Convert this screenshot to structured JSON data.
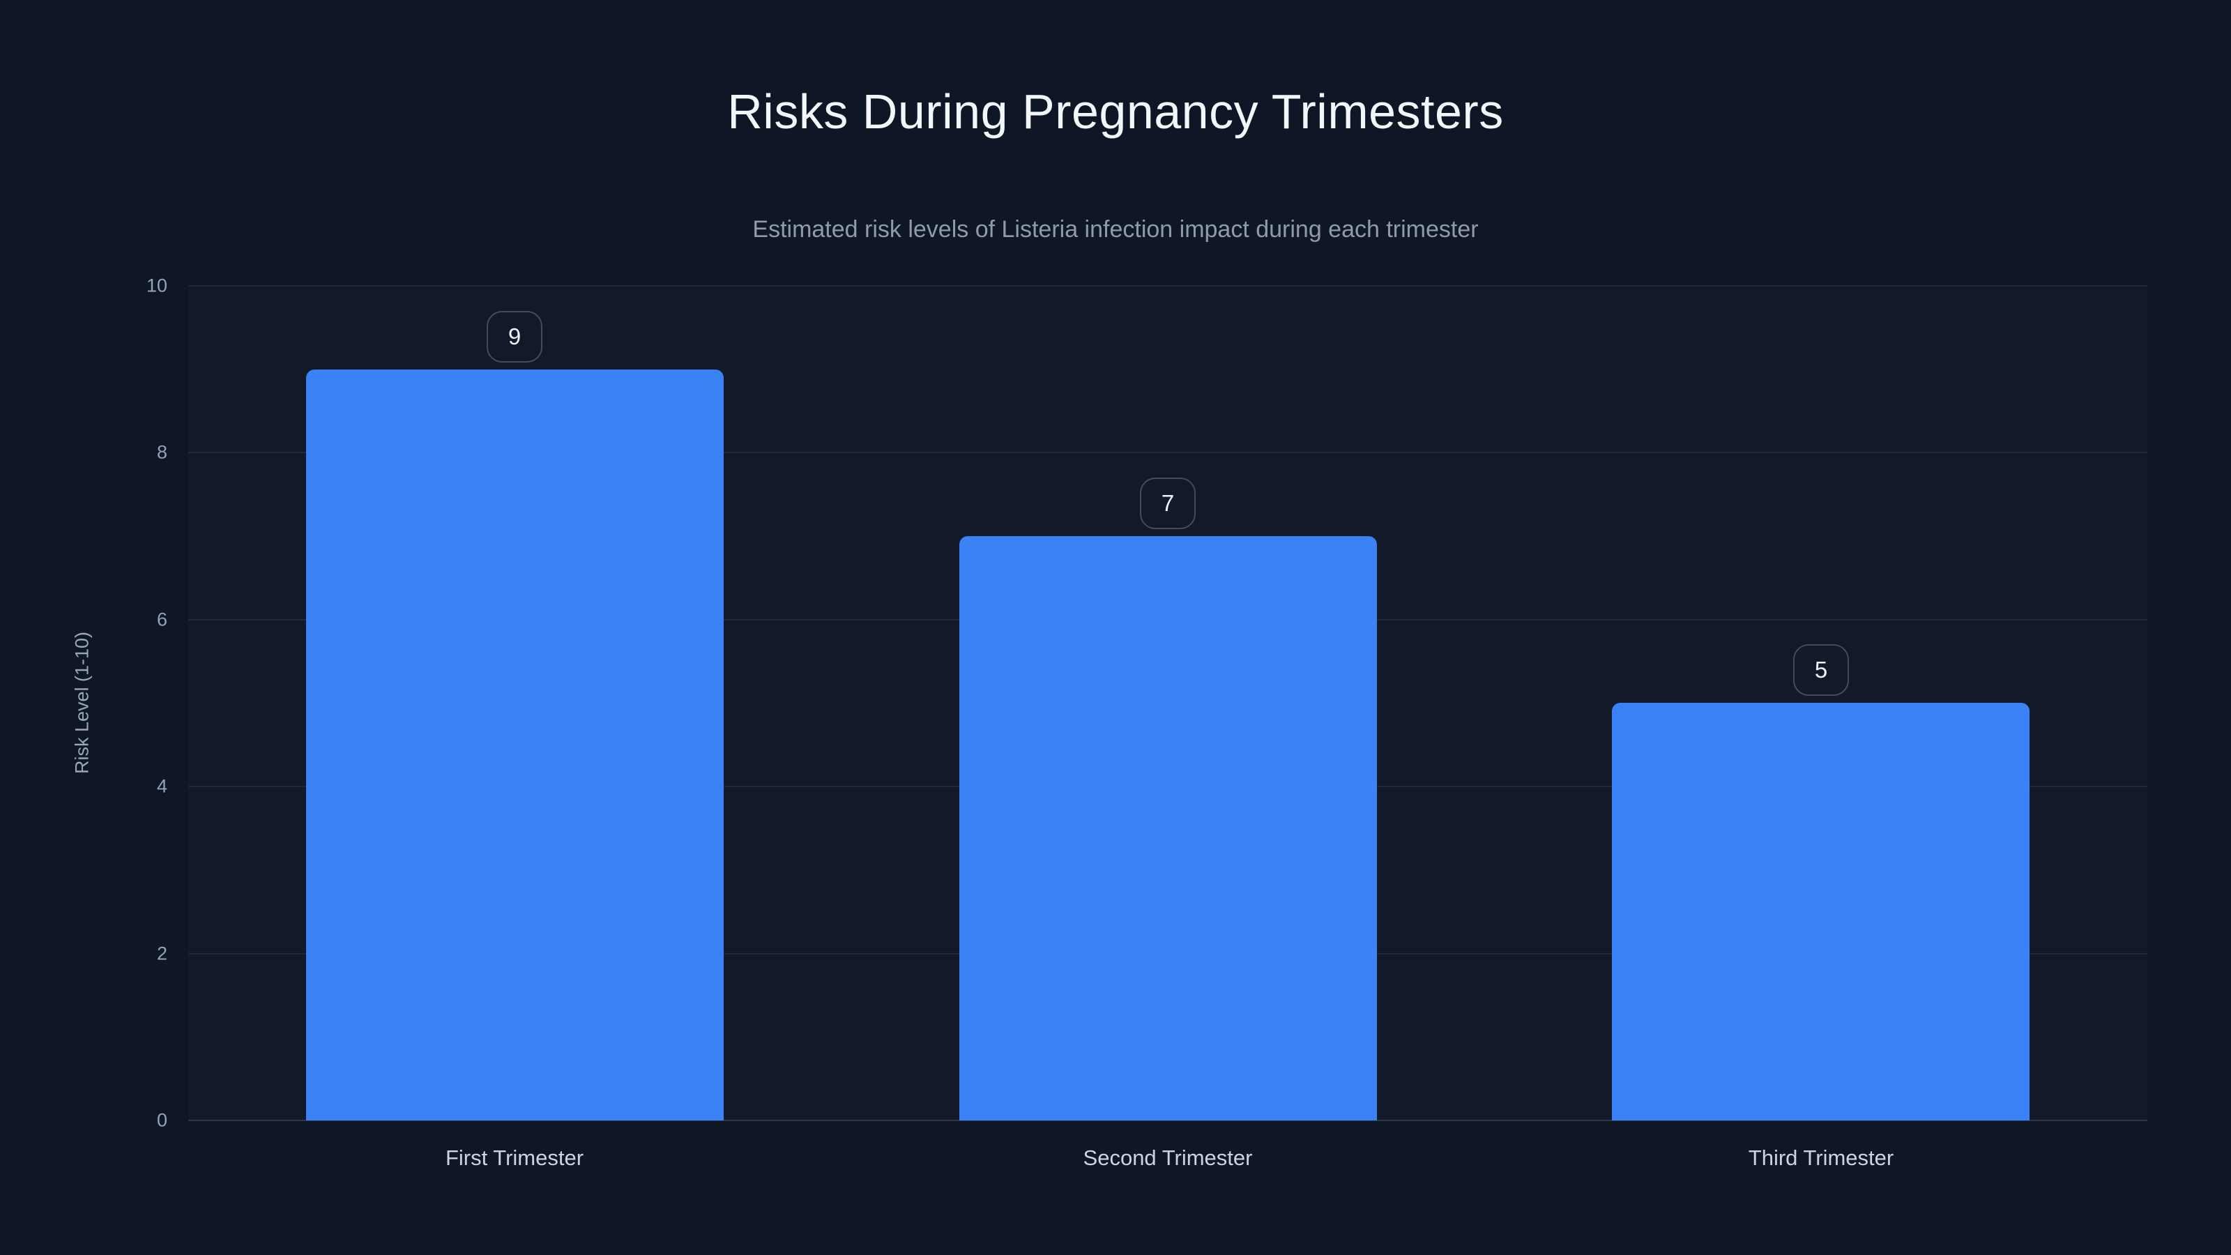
{
  "chart": {
    "title": "Risks During Pregnancy Trimesters",
    "subtitle": "Estimated risk levels of Listeria infection impact during each trimester",
    "ylabel": "Risk Level (1-10)"
  },
  "chart_data": {
    "type": "bar",
    "title": "Risks During Pregnancy Trimesters",
    "subtitle": "Estimated risk levels of Listeria infection impact during each trimester",
    "xlabel": "",
    "ylabel": "Risk Level (1-10)",
    "categories": [
      "First Trimester",
      "Second Trimester",
      "Third Trimester"
    ],
    "values": [
      9,
      7,
      5
    ],
    "value_labels": [
      "9",
      "7",
      "5"
    ],
    "ylim": [
      0,
      10
    ],
    "yticks": [
      0,
      2,
      4,
      6,
      8,
      10
    ],
    "grid": true,
    "legend": false,
    "colors": {
      "background": "#0f1726",
      "bar": "#3b82f6",
      "title_text": "#f4f7fa",
      "subtitle_text": "#8f9bac",
      "tick_text": "#94a3b8",
      "x_label_text": "#cbd5e1",
      "badge_border": "#414c5e",
      "gridline": "rgba(148,163,184,0.12)"
    }
  }
}
